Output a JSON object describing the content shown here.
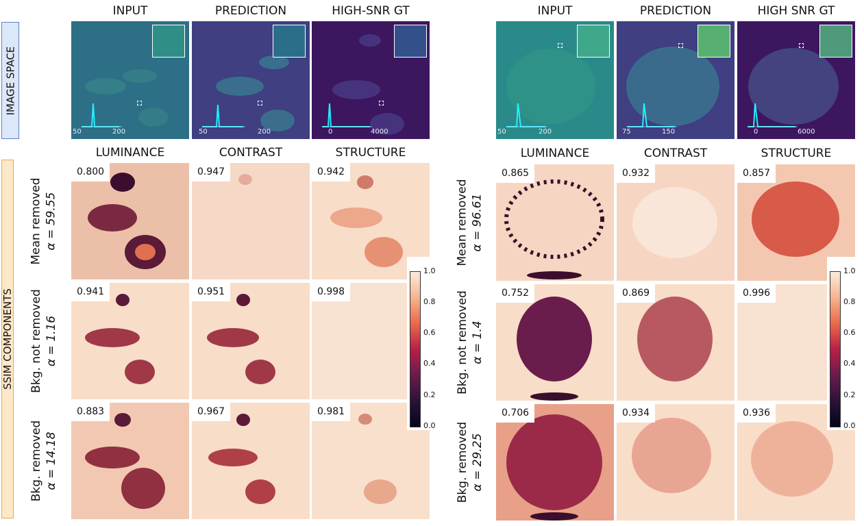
{
  "left_side_labels": {
    "image_space": "IMAGE SPACE",
    "ssim_components": "SSIM COMPONENTS"
  },
  "left": {
    "image_titles": [
      "INPUT",
      "PREDICTION",
      "HIGH-SNR GT"
    ],
    "component_titles": [
      "LUMINANCE",
      "CONTRAST",
      "STRUCTURE"
    ],
    "hist_ticks": [
      [
        "50",
        "200"
      ],
      [
        "50",
        "200"
      ],
      [
        "0",
        "4000"
      ]
    ],
    "rows": [
      {
        "label": "Mean removed",
        "alpha": "α = 59.55",
        "scores": [
          "0.800",
          "0.947",
          "0.942"
        ]
      },
      {
        "label": "Bkg. not removed",
        "alpha": "α = 1.16",
        "scores": [
          "0.941",
          "0.951",
          "0.998"
        ]
      },
      {
        "label": "Bkg. removed",
        "alpha": "α = 14.18",
        "scores": [
          "0.883",
          "0.967",
          "0.981"
        ]
      }
    ]
  },
  "right": {
    "image_titles": [
      "INPUT",
      "PREDICTION",
      "HIGH SNR GT"
    ],
    "component_titles": [
      "LUMINANCE",
      "CONTRAST",
      "STRUCTURE"
    ],
    "hist_ticks": [
      [
        "50",
        "200"
      ],
      [
        "75",
        "150"
      ],
      [
        "0",
        "6000"
      ]
    ],
    "rows": [
      {
        "label": "Mean removed",
        "alpha": "α = 96.61",
        "scores": [
          "0.865",
          "0.932",
          "0.857"
        ]
      },
      {
        "label": "Bkg. not removed",
        "alpha": "α = 1.4",
        "scores": [
          "0.752",
          "0.869",
          "0.996"
        ]
      },
      {
        "label": "Bkg. removed",
        "alpha": "α = 29.25",
        "scores": [
          "0.706",
          "0.934",
          "0.936"
        ]
      }
    ]
  },
  "colorbar": {
    "ticks": [
      "1.0",
      "0.8",
      "0.6",
      "0.4",
      "0.2",
      "0.0"
    ]
  },
  "colors": {
    "viridis_input": "#2d6f86",
    "viridis_input_right": "#2a8a8a",
    "viridis_pred": "#3f3f82",
    "viridis_gt": "#3d1660",
    "hist": "#20f0ff",
    "rocket_light": "#f8dcc8",
    "rocket_mid": "#e07050",
    "rocket_dark": "#3a0e2c"
  }
}
